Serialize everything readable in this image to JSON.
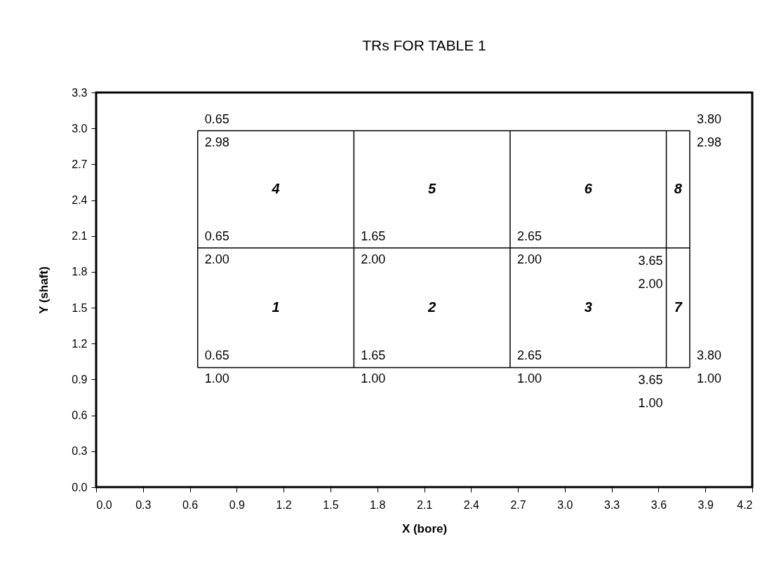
{
  "chart_data": {
    "type": "line",
    "title": "TRs FOR TABLE 1",
    "xlabel": "X (bore)",
    "ylabel": "Y (shaft)",
    "series": [
      {
        "color": "#000000",
        "x": [
          0.65,
          3.8
        ],
        "values": [
          2.98,
          2.98
        ],
        "value_labels": [
          "0.65\n2.98",
          "3.80\n2.98"
        ]
      },
      {
        "color": "#000000",
        "x": [
          0.65,
          1.65,
          2.65,
          3.65,
          3.8
        ],
        "values": [
          2.0,
          2.0,
          2.0,
          2.0,
          2.0
        ],
        "value_labels": [
          "0.65\n2.00",
          "1.65\n2.00",
          "2.65\n2.00",
          "3.65\n2.00",
          null
        ]
      },
      {
        "color": "#000000",
        "x": [
          0.65,
          1.65,
          2.65,
          3.65,
          3.8
        ],
        "values": [
          1.0,
          1.0,
          1.0,
          1.0,
          1.0
        ],
        "value_labels": [
          "0.65\n1.00",
          "1.65\n1.00",
          "2.65\n1.00",
          "3.65\n1.00",
          "3.80\n1.00"
        ]
      },
      {
        "color": "#000000",
        "x": [
          0.65,
          0.65
        ],
        "values": [
          1.0,
          2.98
        ]
      },
      {
        "color": "#000000",
        "x": [
          1.65,
          1.65
        ],
        "values": [
          1.0,
          2.98
        ]
      },
      {
        "color": "#000000",
        "x": [
          2.65,
          2.65
        ],
        "values": [
          1.0,
          2.98
        ]
      },
      {
        "color": "#000000",
        "x": [
          3.65,
          3.65
        ],
        "values": [
          1.0,
          2.98
        ]
      },
      {
        "color": "#000000",
        "x": [
          3.8,
          3.8
        ],
        "values": [
          1.0,
          2.98
        ]
      }
    ],
    "xlim": [
      0,
      4.2
    ],
    "xticks": [
      {
        "value": 0,
        "label": "0.0"
      },
      0.3,
      0.6,
      0.9,
      1.2,
      1.5,
      1.8,
      2.1,
      2.4,
      2.7,
      {
        "value": 3,
        "label": "3.0"
      },
      3.3,
      3.6,
      3.9,
      4.2
    ],
    "ylim": [
      0,
      3.3
    ],
    "yticks": [
      {
        "value": 0,
        "label": "0.0"
      },
      0.3,
      0.6,
      0.9,
      1.2,
      1.5,
      1.8,
      2.1,
      2.4,
      2.7,
      {
        "value": 3,
        "label": "3.0"
      },
      3.3
    ],
    "grid": false,
    "legend": false,
    "marker": "none",
    "line_style": "solid",
    "annotations": [
      "1",
      "2",
      "3",
      "4",
      "5",
      "6",
      "7",
      "8"
    ]
  }
}
